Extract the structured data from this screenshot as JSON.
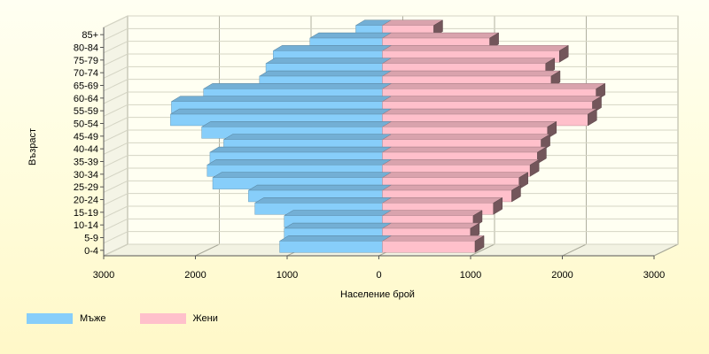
{
  "chart_data": {
    "type": "bar",
    "orientation": "horizontal",
    "style": "3d-population-pyramid",
    "categories": [
      "0-4",
      "5-9",
      "10-14",
      "15-19",
      "20-24",
      "25-29",
      "30-34",
      "35-39",
      "40-44",
      "45-49",
      "50-54",
      "55-59",
      "60-64",
      "65-69",
      "70-74",
      "75-79",
      "80-84",
      "85+"
    ],
    "series": [
      {
        "name": "Мъже",
        "color": "#87cefa",
        "values": [
          1120,
          1070,
          1070,
          1390,
          1460,
          1850,
          1910,
          1880,
          1730,
          1970,
          2310,
          2300,
          1950,
          1340,
          1270,
          1190,
          790,
          290
        ]
      },
      {
        "name": "Жени",
        "color": "#ffc0cb",
        "values": [
          1010,
          960,
          990,
          1210,
          1410,
          1490,
          1610,
          1690,
          1730,
          1800,
          2240,
          2290,
          2330,
          1840,
          1780,
          1930,
          1170,
          560
        ]
      }
    ],
    "xlabel": "Население брой",
    "ylabel": "Възраст",
    "xlim": [
      -3000,
      3000
    ],
    "x_ticks": [
      -3000,
      -2000,
      -1000,
      0,
      1000,
      2000,
      3000
    ],
    "x_tick_labels": [
      "3000",
      "2000",
      "1000",
      "0",
      "1000",
      "2000",
      "3000"
    ],
    "grid": true,
    "legend_position": "bottom-left"
  }
}
